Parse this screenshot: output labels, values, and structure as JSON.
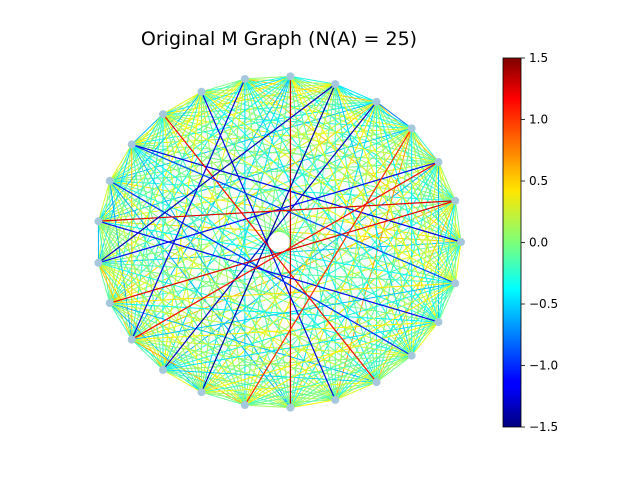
{
  "title": "Original M Graph (N(A) = 25)",
  "node_count": 25,
  "node_color": "#a6c8dc",
  "colormap": "jet",
  "colorbar": {
    "min": -1.5,
    "max": 1.5,
    "ticks": [
      {
        "value": 1.5,
        "label": "1.5"
      },
      {
        "value": 1.0,
        "label": "1.0"
      },
      {
        "value": 0.5,
        "label": "0.5"
      },
      {
        "value": 0.0,
        "label": "0.0"
      },
      {
        "value": -0.5,
        "label": "−0.5"
      },
      {
        "value": -1.0,
        "label": "−1.0"
      },
      {
        "value": -1.5,
        "label": "−1.5"
      }
    ]
  },
  "highlight_edges": [
    {
      "from": 0,
      "to": 10,
      "weight": -1.2
    },
    {
      "from": 2,
      "to": 13,
      "weight": -1.1
    },
    {
      "from": 4,
      "to": 16,
      "weight": -1.3
    },
    {
      "from": 6,
      "to": 19,
      "weight": 1.3
    },
    {
      "from": 8,
      "to": 20,
      "weight": -1.2
    },
    {
      "from": 11,
      "to": 22,
      "weight": -1.0
    },
    {
      "from": 14,
      "to": 1,
      "weight": 1.2
    },
    {
      "from": 17,
      "to": 5,
      "weight": -1.4
    },
    {
      "from": 21,
      "to": 9,
      "weight": 1.1
    },
    {
      "from": 23,
      "to": 12,
      "weight": -1.1
    },
    {
      "from": 3,
      "to": 18,
      "weight": 1.0
    },
    {
      "from": 7,
      "to": 15,
      "weight": -1.2
    },
    {
      "from": 24,
      "to": 10,
      "weight": -0.9
    },
    {
      "from": 12,
      "to": 1,
      "weight": 1.2
    },
    {
      "from": 5,
      "to": 13,
      "weight": -1.3
    },
    {
      "from": 15,
      "to": 2,
      "weight": 1.1
    }
  ]
}
